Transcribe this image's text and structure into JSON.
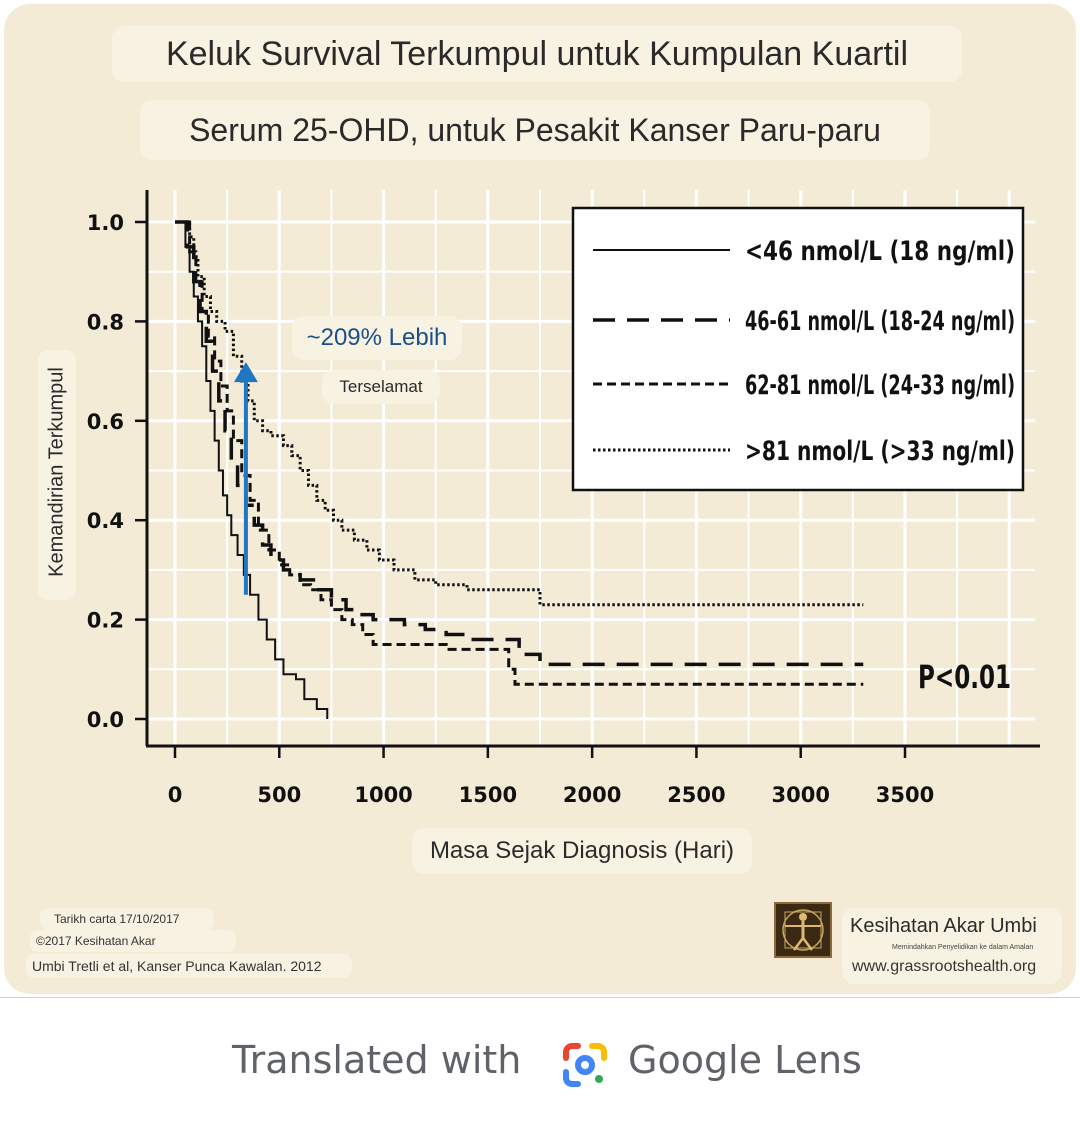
{
  "title": "Keluk Survival Terkumpul untuk Kumpulan Kuartil",
  "subtitle": "Serum 25-OHD, untuk Pesakit Kanser Paru-paru",
  "chart_data": {
    "type": "line",
    "title": "Keluk Survival Terkumpul untuk Kumpulan Kuartil",
    "subtitle": "Serum 25-OHD, untuk Pesakit Kanser Paru-paru",
    "xlabel": "Masa Sejak Diagnosis (Hari)",
    "ylabel": "Kemandirian Terkumpul",
    "xlim": [
      0,
      3500
    ],
    "ylim": [
      0,
      1.0
    ],
    "x_ticks": [
      0,
      500,
      1000,
      1500,
      2000,
      2500,
      3000,
      3500
    ],
    "y_ticks": [
      0.0,
      0.2,
      0.4,
      0.6,
      0.8,
      1.0
    ],
    "y_tick_labels": [
      "0.0",
      "0.2",
      "0.4",
      "0.6",
      "0.8",
      "1.0"
    ],
    "grid": true,
    "legend_position": "top-right",
    "series": [
      {
        "name": "<46 nmol/L (18 ng/ml)",
        "style": "solid",
        "x": [
          0,
          30,
          50,
          70,
          90,
          110,
          130,
          150,
          170,
          190,
          210,
          230,
          250,
          270,
          300,
          330,
          360,
          400,
          440,
          480,
          520,
          580,
          620,
          680,
          730
        ],
        "y": [
          1.0,
          1.0,
          0.95,
          0.9,
          0.85,
          0.8,
          0.75,
          0.68,
          0.62,
          0.56,
          0.5,
          0.45,
          0.41,
          0.37,
          0.33,
          0.29,
          0.25,
          0.2,
          0.16,
          0.12,
          0.09,
          0.08,
          0.04,
          0.02,
          0.0
        ]
      },
      {
        "name": "46-61 nmol/L (18-24 ng/ml)",
        "style": "long-dash",
        "x": [
          0,
          40,
          60,
          90,
          120,
          150,
          180,
          210,
          240,
          270,
          300,
          340,
          380,
          420,
          460,
          520,
          600,
          680,
          750,
          820,
          880,
          950,
          1000,
          1100,
          1200,
          1300,
          1400,
          1500,
          1600,
          1650,
          1700,
          1750,
          3300
        ],
        "y": [
          1.0,
          1.0,
          0.95,
          0.88,
          0.82,
          0.76,
          0.7,
          0.64,
          0.58,
          0.52,
          0.47,
          0.43,
          0.39,
          0.35,
          0.32,
          0.3,
          0.28,
          0.26,
          0.24,
          0.22,
          0.21,
          0.2,
          0.2,
          0.19,
          0.18,
          0.17,
          0.16,
          0.16,
          0.16,
          0.13,
          0.13,
          0.11,
          0.11
        ]
      },
      {
        "name": "62-81 nmol/L (24-33 ng/ml)",
        "style": "short-dash",
        "x": [
          0,
          40,
          70,
          100,
          130,
          160,
          190,
          220,
          250,
          280,
          320,
          360,
          400,
          450,
          500,
          550,
          600,
          650,
          700,
          750,
          800,
          850,
          900,
          950,
          1000,
          1100,
          1300,
          1500,
          1600,
          1630,
          1700,
          3300
        ],
        "y": [
          1.0,
          1.0,
          0.94,
          0.88,
          0.82,
          0.77,
          0.72,
          0.67,
          0.62,
          0.56,
          0.49,
          0.44,
          0.38,
          0.34,
          0.31,
          0.29,
          0.27,
          0.26,
          0.24,
          0.22,
          0.2,
          0.19,
          0.17,
          0.15,
          0.15,
          0.15,
          0.14,
          0.14,
          0.1,
          0.07,
          0.07,
          0.07
        ]
      },
      {
        "name": ">81 nmol/L (>33 ng/ml)",
        "style": "dotted",
        "x": [
          0,
          50,
          70,
          90,
          110,
          140,
          170,
          200,
          240,
          280,
          320,
          350,
          380,
          420,
          460,
          520,
          560,
          600,
          640,
          680,
          720,
          760,
          800,
          860,
          920,
          980,
          1050,
          1150,
          1250,
          1400,
          1700,
          1750,
          2000,
          3300
        ],
        "y": [
          1.0,
          1.0,
          0.97,
          0.93,
          0.89,
          0.85,
          0.82,
          0.8,
          0.78,
          0.73,
          0.68,
          0.64,
          0.6,
          0.58,
          0.57,
          0.55,
          0.53,
          0.5,
          0.47,
          0.44,
          0.42,
          0.4,
          0.38,
          0.36,
          0.34,
          0.32,
          0.3,
          0.28,
          0.27,
          0.26,
          0.26,
          0.23,
          0.23,
          0.23
        ]
      }
    ],
    "annotation_main": "~209% Lebih",
    "annotation_sub": "Terselamat",
    "p_value": "P<0.01",
    "arrow_x": 340,
    "arrow_from_y": 0.25,
    "arrow_to_y": 0.71,
    "arrow_color": "#1f77c4"
  },
  "footer": {
    "date": "Tarikh carta 17/10/2017",
    "copyright": "©2017 Kesihatan Akar",
    "source": "Umbi Tretli et al, Kanser Punca Kawalan. 2012",
    "brand_name": "Kesihatan Akar Umbi",
    "brand_tagline": "Memindahkan Penyelidikan ke dalam Amalan",
    "brand_url": "www.grassrootshealth.org"
  },
  "lens": {
    "prefix": "Translated with",
    "brand": "Google Lens"
  },
  "colors": {
    "background": "#f3ebd6",
    "panel": "#f8f2e2",
    "annotation": "#1a4f8a"
  },
  "icons": {
    "logo": "vitruvian-man-logo",
    "lens": "google-lens-icon"
  }
}
